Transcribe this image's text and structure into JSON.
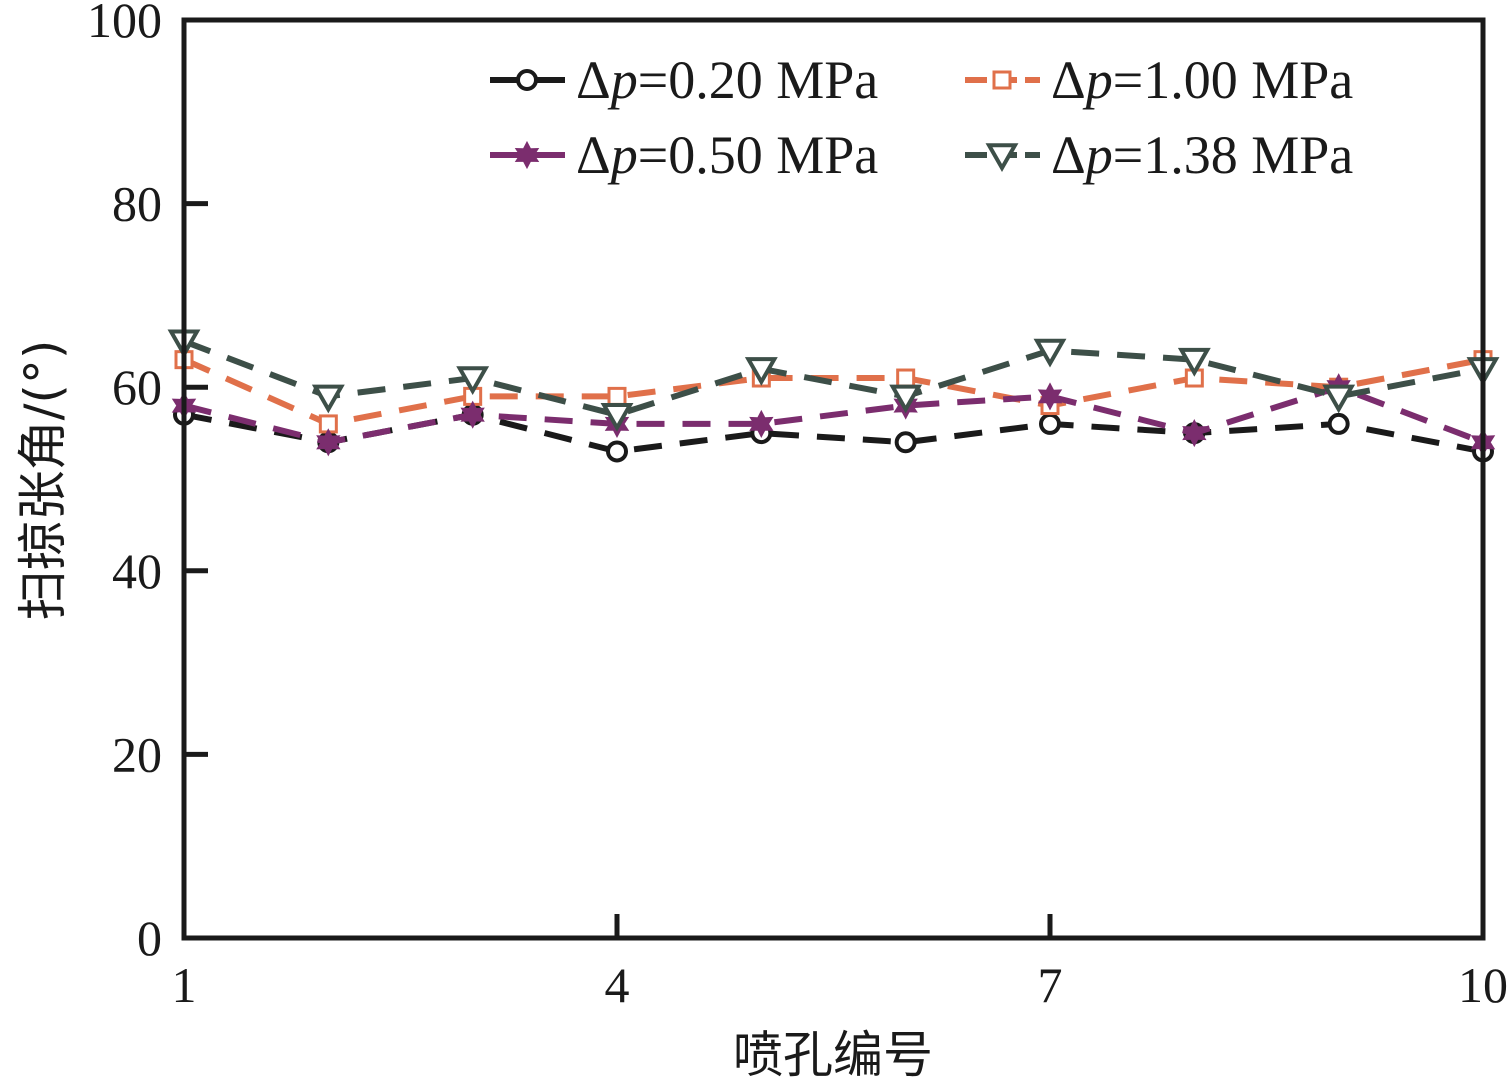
{
  "chart_data": {
    "type": "line",
    "title": "",
    "xlabel": "喷孔编号",
    "ylabel": "扫掠张角/(°)",
    "xlim": [
      1,
      10
    ],
    "ylim": [
      0,
      100
    ],
    "xticks": [
      1,
      4,
      7,
      10
    ],
    "yticks": [
      0,
      20,
      40,
      60,
      80,
      100
    ],
    "grid": false,
    "legend_position": "top-right",
    "x": [
      1,
      2,
      3,
      4,
      5,
      6,
      7,
      8,
      9,
      10
    ],
    "series": [
      {
        "name": "Δp=0.20 MPa",
        "prefix": "Δ",
        "var": "p",
        "suffix": "=0.20 MPa",
        "marker": "circle",
        "color": "#1a1a1a",
        "values": [
          57,
          54,
          57,
          53,
          55,
          54,
          56,
          55,
          56,
          53
        ]
      },
      {
        "name": "Δp=1.00 MPa",
        "prefix": "Δ",
        "var": "p",
        "suffix": "=1.00 MPa",
        "marker": "square",
        "color": "#e0704a",
        "values": [
          63,
          56,
          59,
          59,
          61,
          61,
          58,
          61,
          60,
          63
        ]
      },
      {
        "name": "Δp=0.50 MPa",
        "prefix": "Δ",
        "var": "p",
        "suffix": "=0.50 MPa",
        "marker": "star",
        "color": "#7b2d6e",
        "values": [
          58,
          54,
          57,
          56,
          56,
          58,
          59,
          55,
          60,
          54
        ]
      },
      {
        "name": "Δp=1.38 MPa",
        "prefix": "Δ",
        "var": "p",
        "suffix": "=1.38 MPa",
        "marker": "triangle-down",
        "color": "#3d4f48",
        "values": [
          65,
          59,
          61,
          57,
          62,
          59,
          64,
          63,
          59,
          62
        ]
      }
    ]
  }
}
